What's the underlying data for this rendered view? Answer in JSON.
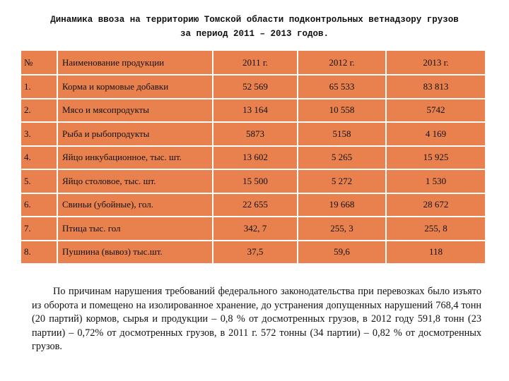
{
  "header": {
    "title": "Динамика ввоза на территорию Томской области подконтрольных ветнадзору грузов",
    "subtitle": "за период 2011 – 2013 годов."
  },
  "table": {
    "columns": [
      "№",
      "Наименование продукции",
      "2011 г.",
      "2012 г.",
      "2013 г."
    ],
    "rows": [
      [
        "1.",
        "Корма и кормовые добавки",
        "52 569",
        "65 533",
        "83 813"
      ],
      [
        "2.",
        "Мясо и мясопродукты",
        "13 164",
        "10 558",
        "5742"
      ],
      [
        "3.",
        "Рыба и рыбопродукты",
        "5873",
        "5158",
        "4 169"
      ],
      [
        "4.",
        "Яйцо инкубационное, тыс. шт.",
        "13 602",
        "5 265",
        "15 925"
      ],
      [
        "5.",
        "Яйцо столовое, тыс. шт.",
        "15 500",
        "5 272",
        "1 530"
      ],
      [
        "6.",
        "Свиньи (убойные), гол.",
        "22 655",
        "19 668",
        "28 672"
      ],
      [
        "7.",
        "Птица тыс. гол",
        "342, 7",
        "255, 3",
        "255, 8"
      ],
      [
        "8.",
        "Пушнина (вывоз) тыс.шт.",
        "37,5",
        "59,6",
        "118"
      ]
    ]
  },
  "paragraph": "По причинам нарушения требований федерального законодательства при перевозках было изъято из оборота и помещено на изолированное хранение, до устранения допущенных нарушений 768,4 тонн (20 партий) кормов, сырья и продукции – 0,8 % от досмотренных грузов, в 2012 году 591,8 тонн (23 партии) – 0,72% от досмотренных грузов, в 2011 г. 572 тонны (34 партии) – 0,82 % от досмотренных грузов."
}
